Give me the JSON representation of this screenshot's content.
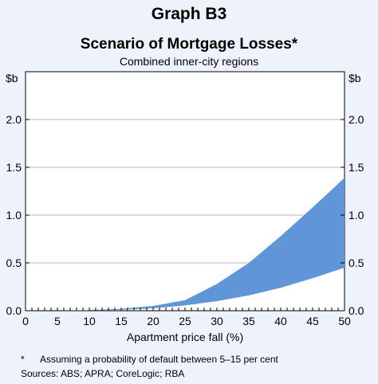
{
  "chart_data": {
    "type": "area",
    "title": "Graph B3",
    "subtitle": "Scenario of Mortgage Losses*",
    "subsubtitle": "Combined inner-city regions",
    "xlabel": "Apartment price fall (%)",
    "unit_left": "$b",
    "unit_right": "$b",
    "xlim": [
      0,
      50
    ],
    "ylim": [
      0,
      2.5
    ],
    "x_ticks": [
      "0",
      "5",
      "10",
      "15",
      "20",
      "25",
      "30",
      "35",
      "40",
      "45",
      "50"
    ],
    "y_ticks": [
      "0.0",
      "0.5",
      "1.0",
      "1.5",
      "2.0"
    ],
    "grid": true,
    "color": "#6096d8",
    "x": [
      0,
      5,
      10,
      15,
      20,
      25,
      30,
      35,
      40,
      45,
      50
    ],
    "upper": [
      0,
      0,
      0.005,
      0.02,
      0.05,
      0.11,
      0.28,
      0.5,
      0.78,
      1.08,
      1.39
    ],
    "lower": [
      0,
      0,
      0.003,
      0.01,
      0.025,
      0.055,
      0.1,
      0.16,
      0.24,
      0.34,
      0.45
    ]
  },
  "notes": {
    "footnote_marker": "*",
    "footnote_text": "Assuming a probability of default between 5–15 per cent",
    "sources": "Sources:  ABS; APRA; CoreLogic; RBA"
  }
}
